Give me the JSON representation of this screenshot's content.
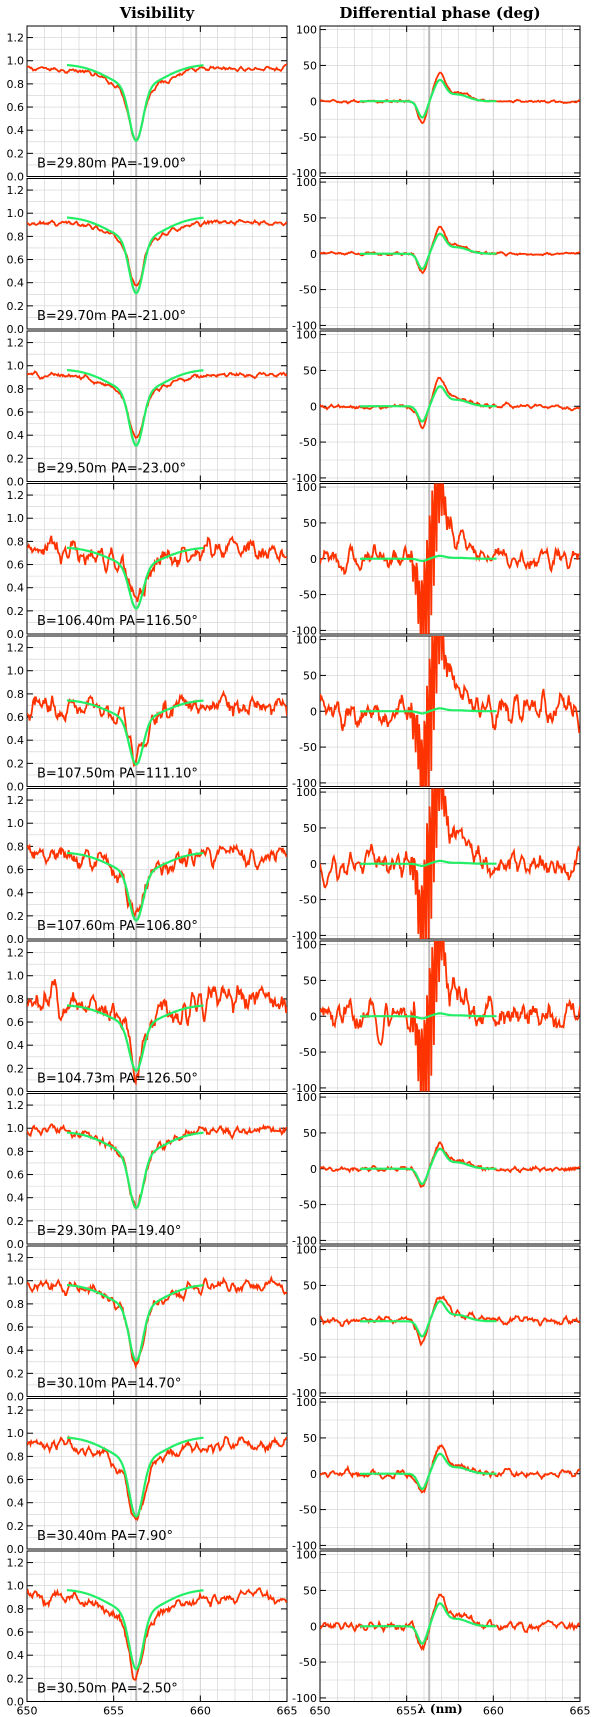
{
  "chart_data": {
    "type": "line",
    "column_titles": [
      "Visibility",
      "Differential phase (deg)"
    ],
    "xlabel": "λ (nm)",
    "xlim": [
      650,
      665
    ],
    "x_ticks": [
      650,
      655,
      660,
      665
    ],
    "x_tick_labels": [
      "650",
      "655",
      "660",
      "665"
    ],
    "vis_ylim": [
      0,
      1.3
    ],
    "vis_ticks": [
      0.0,
      0.2,
      0.4,
      0.6,
      0.8,
      1.0,
      1.2
    ],
    "vis_tick_labels": [
      "0.0",
      "0.2",
      "0.4",
      "0.6",
      "0.8",
      "1.0",
      "1.2"
    ],
    "phase_ylim": [
      -105,
      105
    ],
    "phase_ticks": [
      -100,
      -50,
      0,
      50,
      100
    ],
    "phase_tick_labels": [
      "-100",
      "-50",
      "0",
      "50",
      "100"
    ],
    "colors": {
      "observed": "#ff3300",
      "model": "#22ee66",
      "grid": "#d0d0d0",
      "line_marker": "#bbbbbb"
    },
    "model_range": [
      652.3,
      660.2
    ],
    "panels": [
      {
        "label": "B=29.80m  PA=-19.00°",
        "vis_base": 0.93,
        "vis_min": 0.32,
        "model_cont": 0.97,
        "model_min": 0.31,
        "vis_noise": 0.02,
        "ph_amp": 35,
        "ph_noise": 2,
        "model_ph": 30
      },
      {
        "label": "B=29.70m  PA=-21.00°",
        "vis_base": 0.92,
        "vis_min": 0.37,
        "model_cont": 0.97,
        "model_min": 0.31,
        "vis_noise": 0.02,
        "ph_amp": 33,
        "ph_noise": 2,
        "model_ph": 28
      },
      {
        "label": "B=29.50m  PA=-23.00°",
        "vis_base": 0.92,
        "vis_min": 0.37,
        "model_cont": 0.97,
        "model_min": 0.31,
        "vis_noise": 0.02,
        "ph_amp": 35,
        "ph_noise": 3,
        "model_ph": 28
      },
      {
        "label": "B=106.40m  PA=116.50°",
        "vis_base": 0.72,
        "vis_min": 0.22,
        "model_cont": 0.75,
        "model_min": 0.22,
        "vis_noise": 0.09,
        "ph_amp": 90,
        "ph_noise": 14,
        "model_ph": 4
      },
      {
        "label": "B=107.50m  PA=111.10°",
        "vis_base": 0.72,
        "vis_min": 0.2,
        "model_cont": 0.75,
        "model_min": 0.19,
        "vis_noise": 0.1,
        "ph_amp": 100,
        "ph_noise": 20,
        "model_ph": 4
      },
      {
        "label": "B=107.60m  PA=106.80°",
        "vis_base": 0.72,
        "vis_min": 0.17,
        "model_cont": 0.75,
        "model_min": 0.16,
        "vis_noise": 0.08,
        "ph_amp": 100,
        "ph_noise": 18,
        "model_ph": 4
      },
      {
        "label": "B=104.73m  PA=126.50°",
        "vis_base": 0.78,
        "vis_min": 0.2,
        "model_cont": 0.75,
        "model_min": 0.18,
        "vis_noise": 0.12,
        "ph_amp": 95,
        "ph_noise": 20,
        "model_ph": 4
      },
      {
        "label": "B=29.30m  PA=19.40°",
        "vis_base": 0.98,
        "vis_min": 0.32,
        "model_cont": 0.97,
        "model_min": 0.31,
        "vis_noise": 0.04,
        "ph_amp": 32,
        "ph_noise": 4,
        "model_ph": 28
      },
      {
        "label": "B=30.10m  PA=14.70°",
        "vis_base": 0.96,
        "vis_min": 0.28,
        "model_cont": 0.97,
        "model_min": 0.31,
        "vis_noise": 0.05,
        "ph_amp": 33,
        "ph_noise": 5,
        "model_ph": 28
      },
      {
        "label": "B=30.40m  PA=7.90°",
        "vis_base": 0.9,
        "vis_min": 0.24,
        "model_cont": 0.97,
        "model_min": 0.28,
        "vis_noise": 0.05,
        "ph_amp": 35,
        "ph_noise": 5,
        "model_ph": 28
      },
      {
        "label": "B=30.50m  PA=-2.50°",
        "vis_base": 0.9,
        "vis_min": 0.22,
        "model_cont": 0.97,
        "model_min": 0.28,
        "vis_noise": 0.05,
        "ph_amp": 40,
        "ph_noise": 6,
        "model_ph": 32
      }
    ]
  }
}
